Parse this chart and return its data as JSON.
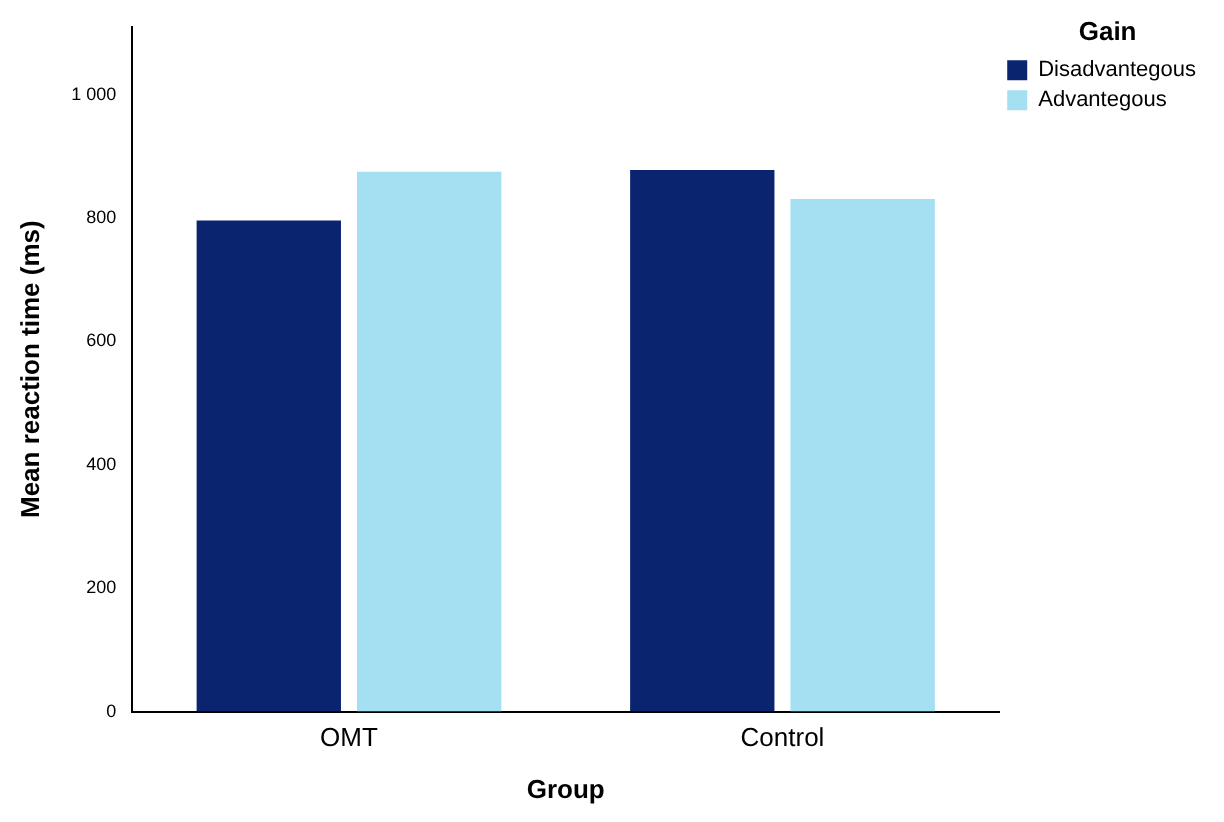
{
  "chart_data": {
    "type": "bar",
    "xlabel": "Group",
    "ylabel": "Mean reaction time (ms)",
    "legend_title": "Gain",
    "categories": [
      "OMT",
      "Control"
    ],
    "series": [
      {
        "name": "Disadvantegous",
        "color": "#0b2470",
        "values": [
          796,
          878
        ]
      },
      {
        "name": "Advantegous",
        "color": "#a4dff2",
        "values": [
          875,
          831
        ]
      }
    ],
    "ylim": [
      0,
      1110
    ],
    "yticks": [
      0,
      200,
      400,
      600,
      800,
      {
        "value": 1000,
        "label": "1 000"
      }
    ],
    "grid": false,
    "legend": "top right"
  }
}
